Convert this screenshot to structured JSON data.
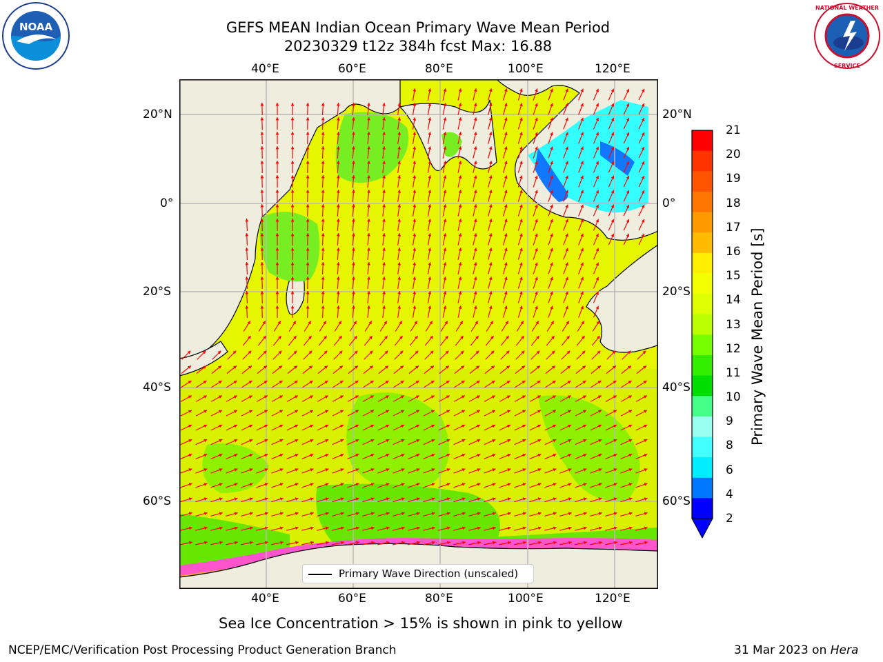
{
  "header": {
    "title_line1": "GEFS MEAN Indian Ocean Primary Wave Mean Period",
    "title_line2": "20230329 t12z 384h fcst   Max: 16.88"
  },
  "logos": {
    "left": "NOAA",
    "right": "NATIONAL WEATHER SERVICE"
  },
  "axes": {
    "lon_labels": [
      "40°E",
      "60°E",
      "80°E",
      "100°E",
      "120°E"
    ],
    "lat_labels": [
      "20°N",
      "0°",
      "20°S",
      "40°S",
      "60°S"
    ]
  },
  "legend": {
    "label": "Primary Wave Direction (unscaled)"
  },
  "colorbar": {
    "title": "Primary Wave Mean Period [s]",
    "ticks": [
      "21",
      "20",
      "19",
      "18",
      "17",
      "16",
      "15",
      "14",
      "13",
      "12",
      "11",
      "10",
      "9",
      "8",
      "6",
      "4",
      "2"
    ],
    "colors": [
      "#ff0000",
      "#ff3300",
      "#ff5500",
      "#ff7700",
      "#ff9900",
      "#ffbb00",
      "#ffee00",
      "#f2ff00",
      "#ddff00",
      "#bbff00",
      "#77ff00",
      "#33ee00",
      "#00dd00",
      "#44ff88",
      "#99ffee",
      "#44ffff",
      "#00eeff",
      "#0077ff",
      "#0000ff"
    ]
  },
  "caption": "Sea Ice Concentration > 15% is shown in pink to yellow",
  "footer": {
    "left": "NCEP/EMC/Verification Post Processing Product Generation Branch",
    "right_prefix": "31 Mar 2023 on ",
    "right_machine": "Hera"
  }
}
